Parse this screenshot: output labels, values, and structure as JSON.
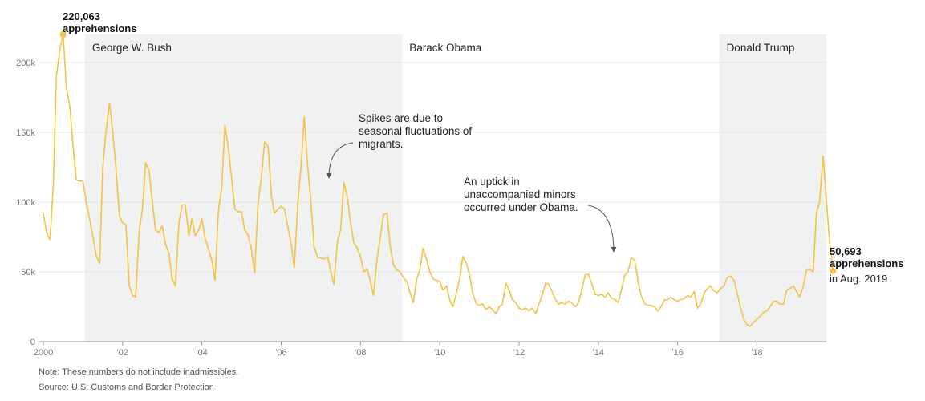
{
  "chart_data": {
    "type": "line",
    "x_unit": "year",
    "y_range": [
      0,
      220000
    ],
    "x_range": [
      2000,
      2019.75
    ],
    "y_ticks": [
      {
        "value": 0,
        "label": "0"
      },
      {
        "value": 50000,
        "label": "50k"
      },
      {
        "value": 100000,
        "label": "100k"
      },
      {
        "value": 150000,
        "label": "150k"
      },
      {
        "value": 200000,
        "label": "200k"
      }
    ],
    "x_ticks": [
      {
        "value": 2000,
        "label": "2000"
      },
      {
        "value": 2002,
        "label": "'02"
      },
      {
        "value": 2004,
        "label": "'04"
      },
      {
        "value": 2006,
        "label": "'06"
      },
      {
        "value": 2008,
        "label": "'08"
      },
      {
        "value": 2010,
        "label": "'10"
      },
      {
        "value": 2012,
        "label": "'12"
      },
      {
        "value": 2014,
        "label": "'14"
      },
      {
        "value": 2016,
        "label": "'16"
      },
      {
        "value": 2018,
        "label": "'18"
      }
    ],
    "grid": "horizontal",
    "eras": [
      {
        "label": "George W. Bush",
        "start": 2001.05,
        "end": 2009.05,
        "shaded": true
      },
      {
        "label": "Barack Obama",
        "start": 2009.05,
        "end": 2017.05,
        "shaded": false
      },
      {
        "label": "Donald Trump",
        "start": 2017.05,
        "end": 2019.75,
        "shaded": true
      }
    ],
    "series": [
      {
        "color": "#f5c342",
        "points": [
          [
            2000.0,
            92000
          ],
          [
            2000.08,
            78000
          ],
          [
            2000.17,
            73000
          ],
          [
            2000.25,
            112000
          ],
          [
            2000.33,
            190000
          ],
          [
            2000.42,
            210000
          ],
          [
            2000.5,
            220063
          ],
          [
            2000.58,
            182000
          ],
          [
            2000.67,
            168000
          ],
          [
            2000.75,
            140000
          ],
          [
            2000.83,
            116000
          ],
          [
            2000.92,
            115000
          ],
          [
            2001.0,
            115000
          ],
          [
            2001.08,
            100000
          ],
          [
            2001.17,
            88000
          ],
          [
            2001.25,
            75000
          ],
          [
            2001.33,
            62000
          ],
          [
            2001.42,
            56000
          ],
          [
            2001.5,
            125000
          ],
          [
            2001.58,
            150000
          ],
          [
            2001.67,
            171000
          ],
          [
            2001.75,
            150000
          ],
          [
            2001.83,
            125000
          ],
          [
            2001.92,
            90000
          ],
          [
            2002.0,
            85000
          ],
          [
            2002.08,
            84000
          ],
          [
            2002.17,
            40000
          ],
          [
            2002.25,
            33000
          ],
          [
            2002.33,
            32000
          ],
          [
            2002.42,
            80000
          ],
          [
            2002.5,
            95000
          ],
          [
            2002.58,
            128000
          ],
          [
            2002.67,
            122000
          ],
          [
            2002.75,
            100000
          ],
          [
            2002.83,
            80000
          ],
          [
            2002.92,
            78000
          ],
          [
            2003.0,
            83000
          ],
          [
            2003.08,
            70000
          ],
          [
            2003.17,
            63000
          ],
          [
            2003.25,
            45000
          ],
          [
            2003.33,
            40000
          ],
          [
            2003.42,
            85000
          ],
          [
            2003.5,
            98000
          ],
          [
            2003.58,
            98000
          ],
          [
            2003.67,
            76000
          ],
          [
            2003.75,
            88000
          ],
          [
            2003.83,
            76000
          ],
          [
            2003.92,
            80000
          ],
          [
            2004.0,
            88000
          ],
          [
            2004.08,
            74000
          ],
          [
            2004.17,
            66000
          ],
          [
            2004.25,
            58000
          ],
          [
            2004.33,
            44000
          ],
          [
            2004.42,
            95000
          ],
          [
            2004.5,
            110000
          ],
          [
            2004.58,
            155000
          ],
          [
            2004.67,
            138000
          ],
          [
            2004.75,
            117000
          ],
          [
            2004.83,
            95000
          ],
          [
            2004.92,
            93000
          ],
          [
            2005.0,
            93000
          ],
          [
            2005.08,
            80000
          ],
          [
            2005.17,
            76000
          ],
          [
            2005.25,
            66000
          ],
          [
            2005.33,
            49000
          ],
          [
            2005.42,
            100000
          ],
          [
            2005.5,
            118000
          ],
          [
            2005.58,
            143000
          ],
          [
            2005.67,
            140000
          ],
          [
            2005.75,
            105000
          ],
          [
            2005.83,
            92000
          ],
          [
            2005.92,
            95000
          ],
          [
            2006.0,
            97000
          ],
          [
            2006.08,
            95000
          ],
          [
            2006.17,
            82000
          ],
          [
            2006.25,
            70000
          ],
          [
            2006.33,
            53000
          ],
          [
            2006.42,
            100000
          ],
          [
            2006.5,
            125000
          ],
          [
            2006.58,
            161000
          ],
          [
            2006.67,
            125000
          ],
          [
            2006.75,
            100000
          ],
          [
            2006.83,
            68000
          ],
          [
            2006.92,
            60000
          ],
          [
            2007.0,
            60000
          ],
          [
            2007.08,
            59000
          ],
          [
            2007.17,
            61000
          ],
          [
            2007.25,
            50000
          ],
          [
            2007.33,
            41000
          ],
          [
            2007.42,
            72000
          ],
          [
            2007.5,
            80000
          ],
          [
            2007.58,
            114000
          ],
          [
            2007.67,
            103000
          ],
          [
            2007.75,
            85000
          ],
          [
            2007.83,
            71000
          ],
          [
            2007.92,
            67000
          ],
          [
            2008.0,
            61000
          ],
          [
            2008.08,
            50000
          ],
          [
            2008.17,
            52000
          ],
          [
            2008.25,
            43000
          ],
          [
            2008.33,
            33000
          ],
          [
            2008.42,
            60000
          ],
          [
            2008.5,
            75000
          ],
          [
            2008.58,
            91000
          ],
          [
            2008.67,
            92000
          ],
          [
            2008.75,
            68000
          ],
          [
            2008.83,
            55000
          ],
          [
            2008.92,
            51000
          ],
          [
            2009.0,
            50000
          ],
          [
            2009.08,
            46000
          ],
          [
            2009.17,
            43000
          ],
          [
            2009.25,
            35000
          ],
          [
            2009.33,
            28000
          ],
          [
            2009.42,
            45000
          ],
          [
            2009.5,
            52000
          ],
          [
            2009.58,
            67000
          ],
          [
            2009.67,
            58000
          ],
          [
            2009.75,
            50000
          ],
          [
            2009.83,
            45000
          ],
          [
            2009.92,
            44000
          ],
          [
            2010.0,
            43000
          ],
          [
            2010.08,
            37000
          ],
          [
            2010.17,
            40000
          ],
          [
            2010.25,
            30000
          ],
          [
            2010.33,
            25000
          ],
          [
            2010.42,
            35000
          ],
          [
            2010.5,
            45000
          ],
          [
            2010.58,
            61000
          ],
          [
            2010.67,
            56000
          ],
          [
            2010.75,
            48000
          ],
          [
            2010.83,
            35000
          ],
          [
            2010.92,
            27000
          ],
          [
            2011.0,
            26000
          ],
          [
            2011.08,
            27000
          ],
          [
            2011.17,
            23000
          ],
          [
            2011.25,
            25000
          ],
          [
            2011.33,
            23000
          ],
          [
            2011.42,
            20000
          ],
          [
            2011.5,
            25000
          ],
          [
            2011.58,
            27000
          ],
          [
            2011.67,
            42000
          ],
          [
            2011.75,
            37000
          ],
          [
            2011.83,
            30000
          ],
          [
            2011.92,
            28000
          ],
          [
            2012.0,
            24000
          ],
          [
            2012.08,
            23000
          ],
          [
            2012.17,
            24000
          ],
          [
            2012.25,
            22000
          ],
          [
            2012.33,
            24000
          ],
          [
            2012.42,
            20000
          ],
          [
            2012.5,
            27000
          ],
          [
            2012.58,
            33000
          ],
          [
            2012.67,
            42000
          ],
          [
            2012.75,
            41000
          ],
          [
            2012.83,
            36000
          ],
          [
            2012.92,
            30000
          ],
          [
            2013.0,
            27000
          ],
          [
            2013.08,
            28000
          ],
          [
            2013.17,
            27000
          ],
          [
            2013.25,
            29000
          ],
          [
            2013.33,
            28000
          ],
          [
            2013.42,
            25000
          ],
          [
            2013.5,
            28000
          ],
          [
            2013.58,
            37000
          ],
          [
            2013.67,
            48000
          ],
          [
            2013.75,
            48000
          ],
          [
            2013.83,
            42000
          ],
          [
            2013.92,
            34000
          ],
          [
            2014.0,
            33000
          ],
          [
            2014.08,
            34000
          ],
          [
            2014.17,
            32000
          ],
          [
            2014.25,
            35000
          ],
          [
            2014.33,
            31000
          ],
          [
            2014.42,
            30000
          ],
          [
            2014.5,
            28000
          ],
          [
            2014.58,
            37000
          ],
          [
            2014.67,
            48000
          ],
          [
            2014.75,
            50000
          ],
          [
            2014.83,
            60000
          ],
          [
            2014.92,
            58000
          ],
          [
            2015.0,
            43000
          ],
          [
            2015.08,
            33000
          ],
          [
            2015.17,
            27000
          ],
          [
            2015.25,
            26000
          ],
          [
            2015.33,
            26000
          ],
          [
            2015.42,
            25000
          ],
          [
            2015.5,
            22000
          ],
          [
            2015.58,
            25000
          ],
          [
            2015.67,
            30000
          ],
          [
            2015.75,
            30000
          ],
          [
            2015.83,
            32000
          ],
          [
            2015.92,
            30000
          ],
          [
            2016.0,
            29000
          ],
          [
            2016.08,
            30000
          ],
          [
            2016.17,
            31000
          ],
          [
            2016.25,
            33000
          ],
          [
            2016.33,
            32000
          ],
          [
            2016.42,
            36000
          ],
          [
            2016.5,
            24000
          ],
          [
            2016.58,
            27000
          ],
          [
            2016.67,
            35000
          ],
          [
            2016.75,
            38000
          ],
          [
            2016.83,
            40000
          ],
          [
            2016.92,
            36000
          ],
          [
            2017.0,
            35000
          ],
          [
            2017.08,
            38000
          ],
          [
            2017.17,
            40000
          ],
          [
            2017.25,
            46000
          ],
          [
            2017.33,
            47000
          ],
          [
            2017.42,
            44000
          ],
          [
            2017.5,
            35000
          ],
          [
            2017.58,
            25000
          ],
          [
            2017.67,
            16000
          ],
          [
            2017.75,
            12000
          ],
          [
            2017.83,
            11000
          ],
          [
            2017.92,
            14000
          ],
          [
            2018.0,
            16000
          ],
          [
            2018.08,
            18000
          ],
          [
            2018.17,
            21000
          ],
          [
            2018.25,
            22000
          ],
          [
            2018.33,
            25000
          ],
          [
            2018.42,
            29000
          ],
          [
            2018.5,
            29000
          ],
          [
            2018.58,
            27000
          ],
          [
            2018.67,
            27000
          ],
          [
            2018.75,
            37000
          ],
          [
            2018.83,
            38000
          ],
          [
            2018.92,
            40000
          ],
          [
            2019.0,
            36000
          ],
          [
            2019.08,
            32000
          ],
          [
            2019.17,
            40000
          ],
          [
            2019.25,
            51000
          ],
          [
            2019.33,
            52000
          ],
          [
            2019.42,
            50000
          ],
          [
            2019.5,
            92000
          ],
          [
            2019.58,
            100000
          ],
          [
            2019.67,
            133000
          ],
          [
            2019.75,
            102000
          ],
          [
            2019.83,
            72000
          ],
          [
            2019.92,
            50693
          ]
        ]
      }
    ],
    "highlights": [
      {
        "x": 2000.5,
        "y": 220063,
        "value_label": "220,063",
        "desc": "apprehensions"
      },
      {
        "x": 2019.92,
        "y": 50693,
        "value_label": "50,693",
        "desc": "apprehensions",
        "desc2": "in Aug. 2019"
      }
    ],
    "annotations": [
      {
        "lines": [
          "Spikes are due to",
          "seasonal fluctuations of",
          "migrants."
        ],
        "target_x": 2007.58,
        "target_y": 114000
      },
      {
        "lines": [
          "An uptick in",
          "unaccompanied minors",
          "occurred under Obama."
        ],
        "target_x": 2014.83,
        "target_y": 60000
      }
    ]
  },
  "note": "Note: These numbers do not include inadmissibles.",
  "source_prefix": "Source: ",
  "source_link": "U.S. Customs and Border Protection",
  "colors": {
    "line": "#f5c342",
    "shade": "#f1f1f1",
    "grid": "#e6e6e6",
    "axis": "#999999"
  }
}
